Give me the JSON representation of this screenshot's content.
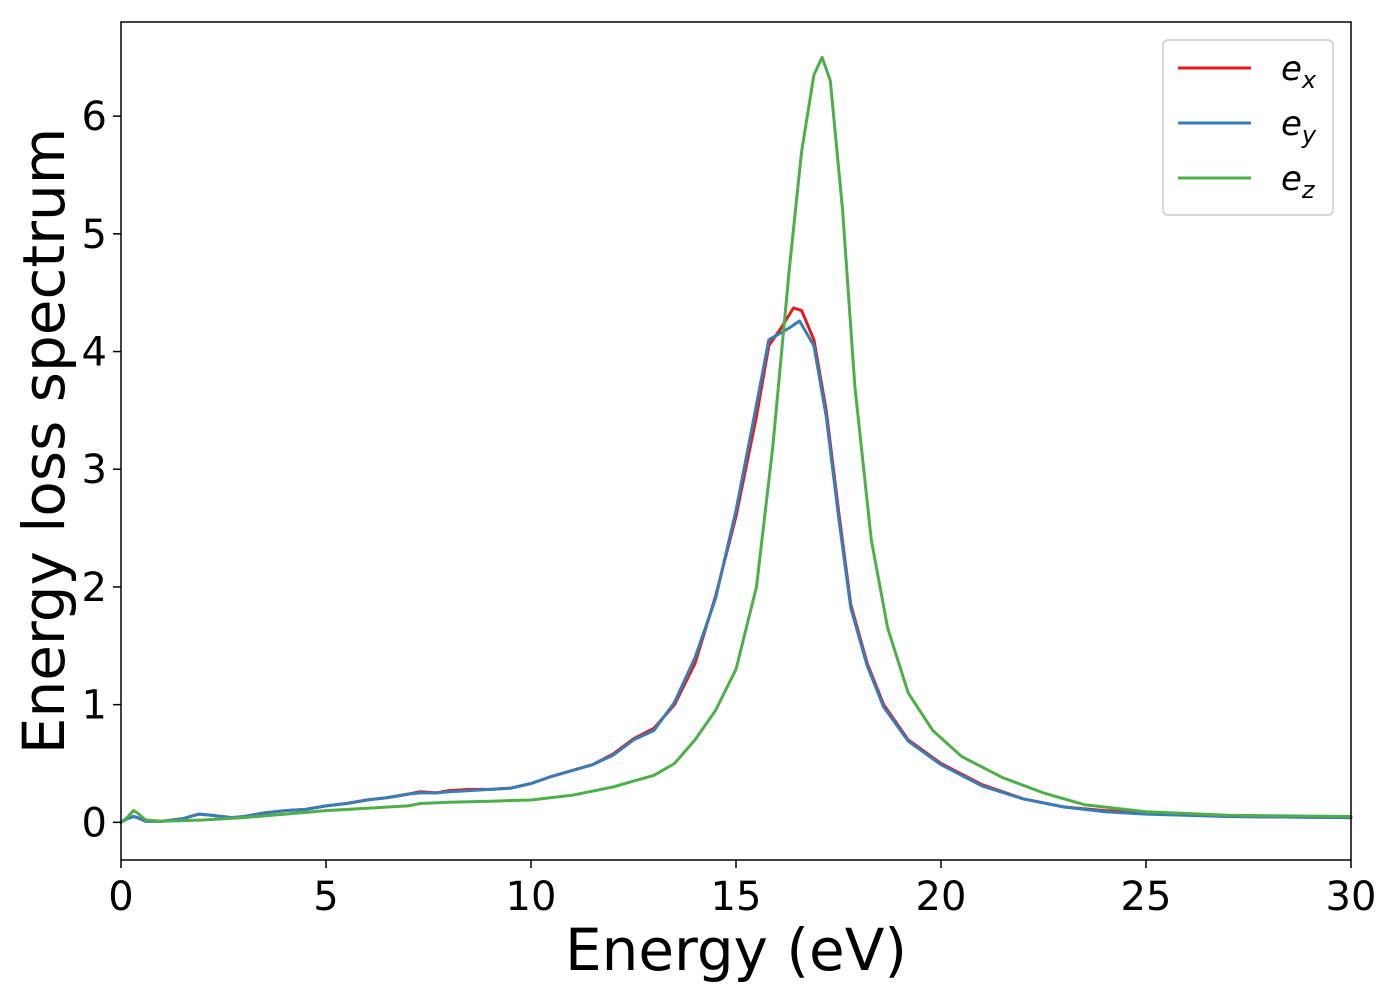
{
  "chart_data": {
    "type": "line",
    "title": "",
    "xlabel": "Energy (eV)",
    "ylabel": "Energy loss spectrum",
    "xlim": [
      0,
      30
    ],
    "ylim": [
      -0.32,
      6.8
    ],
    "xticks": [
      0,
      5,
      10,
      15,
      20,
      25,
      30
    ],
    "yticks": [
      0,
      1,
      2,
      3,
      4,
      5,
      6
    ],
    "grid": false,
    "legend_position": "top-right",
    "series": [
      {
        "name": "e_x",
        "label_base": "e",
        "label_sub": "x",
        "color": "#e41a1c",
        "points": [
          [
            0,
            0
          ],
          [
            0.15,
            0.03
          ],
          [
            0.3,
            0.05
          ],
          [
            0.4,
            0.04
          ],
          [
            0.6,
            0.01
          ],
          [
            1,
            0.01
          ],
          [
            1.5,
            0.03
          ],
          [
            1.9,
            0.07
          ],
          [
            2.2,
            0.06
          ],
          [
            2.7,
            0.04
          ],
          [
            3,
            0.05
          ],
          [
            3.5,
            0.08
          ],
          [
            4,
            0.1
          ],
          [
            4.5,
            0.11
          ],
          [
            5,
            0.14
          ],
          [
            5.5,
            0.16
          ],
          [
            6,
            0.19
          ],
          [
            6.5,
            0.21
          ],
          [
            7,
            0.24
          ],
          [
            7.3,
            0.26
          ],
          [
            7.7,
            0.25
          ],
          [
            8,
            0.27
          ],
          [
            8.5,
            0.28
          ],
          [
            9,
            0.28
          ],
          [
            9.5,
            0.29
          ],
          [
            10,
            0.33
          ],
          [
            10.5,
            0.39
          ],
          [
            11,
            0.44
          ],
          [
            11.5,
            0.49
          ],
          [
            12,
            0.58
          ],
          [
            12.5,
            0.71
          ],
          [
            13,
            0.8
          ],
          [
            13.5,
            1.0
          ],
          [
            14,
            1.35
          ],
          [
            14.5,
            1.92
          ],
          [
            15,
            2.6
          ],
          [
            15.5,
            3.45
          ],
          [
            15.8,
            4.05
          ],
          [
            16.1,
            4.2
          ],
          [
            16.4,
            4.37
          ],
          [
            16.6,
            4.35
          ],
          [
            16.9,
            4.1
          ],
          [
            17.2,
            3.5
          ],
          [
            17.5,
            2.65
          ],
          [
            17.8,
            1.85
          ],
          [
            18.2,
            1.35
          ],
          [
            18.6,
            1.0
          ],
          [
            19.2,
            0.7
          ],
          [
            20,
            0.5
          ],
          [
            21,
            0.32
          ],
          [
            22,
            0.2
          ],
          [
            23,
            0.13
          ],
          [
            24,
            0.1
          ],
          [
            25,
            0.08
          ],
          [
            27,
            0.05
          ],
          [
            30,
            0.04
          ]
        ]
      },
      {
        "name": "e_y",
        "label_base": "e",
        "label_sub": "y",
        "color": "#377eb8",
        "points": [
          [
            0,
            0
          ],
          [
            0.15,
            0.03
          ],
          [
            0.3,
            0.05
          ],
          [
            0.4,
            0.04
          ],
          [
            0.6,
            0.01
          ],
          [
            1,
            0.01
          ],
          [
            1.5,
            0.03
          ],
          [
            1.9,
            0.07
          ],
          [
            2.2,
            0.06
          ],
          [
            2.7,
            0.04
          ],
          [
            3,
            0.05
          ],
          [
            3.5,
            0.08
          ],
          [
            4,
            0.1
          ],
          [
            4.5,
            0.11
          ],
          [
            5,
            0.14
          ],
          [
            5.5,
            0.16
          ],
          [
            6,
            0.19
          ],
          [
            6.5,
            0.21
          ],
          [
            7,
            0.24
          ],
          [
            7.3,
            0.25
          ],
          [
            7.7,
            0.25
          ],
          [
            8,
            0.26
          ],
          [
            8.5,
            0.27
          ],
          [
            9,
            0.28
          ],
          [
            9.5,
            0.29
          ],
          [
            10,
            0.33
          ],
          [
            10.5,
            0.39
          ],
          [
            11,
            0.44
          ],
          [
            11.5,
            0.49
          ],
          [
            12,
            0.57
          ],
          [
            12.5,
            0.7
          ],
          [
            13,
            0.78
          ],
          [
            13.5,
            1.02
          ],
          [
            14,
            1.4
          ],
          [
            14.5,
            1.9
          ],
          [
            15,
            2.65
          ],
          [
            15.5,
            3.55
          ],
          [
            15.8,
            4.1
          ],
          [
            16.1,
            4.16
          ],
          [
            16.3,
            4.2
          ],
          [
            16.55,
            4.26
          ],
          [
            16.9,
            4.05
          ],
          [
            17.2,
            3.45
          ],
          [
            17.5,
            2.6
          ],
          [
            17.8,
            1.82
          ],
          [
            18.2,
            1.33
          ],
          [
            18.6,
            0.98
          ],
          [
            19.2,
            0.69
          ],
          [
            20,
            0.49
          ],
          [
            21,
            0.31
          ],
          [
            22,
            0.2
          ],
          [
            23,
            0.13
          ],
          [
            24,
            0.09
          ],
          [
            25,
            0.07
          ],
          [
            27,
            0.05
          ],
          [
            30,
            0.04
          ]
        ]
      },
      {
        "name": "e_z",
        "label_base": "e",
        "label_sub": "z",
        "color": "#4daf4a",
        "points": [
          [
            0,
            0
          ],
          [
            0.15,
            0.04
          ],
          [
            0.3,
            0.1
          ],
          [
            0.4,
            0.08
          ],
          [
            0.6,
            0.02
          ],
          [
            1,
            0.01
          ],
          [
            2,
            0.02
          ],
          [
            3,
            0.04
          ],
          [
            4,
            0.07
          ],
          [
            5,
            0.1
          ],
          [
            6,
            0.12
          ],
          [
            7,
            0.14
          ],
          [
            7.3,
            0.16
          ],
          [
            8,
            0.17
          ],
          [
            9,
            0.18
          ],
          [
            10,
            0.19
          ],
          [
            11,
            0.23
          ],
          [
            12,
            0.3
          ],
          [
            12.5,
            0.35
          ],
          [
            13,
            0.4
          ],
          [
            13.5,
            0.5
          ],
          [
            14,
            0.7
          ],
          [
            14.5,
            0.95
          ],
          [
            15,
            1.3
          ],
          [
            15.5,
            2.0
          ],
          [
            15.9,
            3.2
          ],
          [
            16.3,
            4.7
          ],
          [
            16.6,
            5.7
          ],
          [
            16.9,
            6.35
          ],
          [
            17.1,
            6.5
          ],
          [
            17.3,
            6.3
          ],
          [
            17.6,
            5.2
          ],
          [
            17.9,
            3.7
          ],
          [
            18.3,
            2.4
          ],
          [
            18.7,
            1.65
          ],
          [
            19.2,
            1.1
          ],
          [
            19.8,
            0.78
          ],
          [
            20.5,
            0.56
          ],
          [
            21.5,
            0.38
          ],
          [
            22.5,
            0.25
          ],
          [
            23.5,
            0.15
          ],
          [
            25,
            0.09
          ],
          [
            27,
            0.06
          ],
          [
            30,
            0.05
          ]
        ]
      }
    ]
  }
}
